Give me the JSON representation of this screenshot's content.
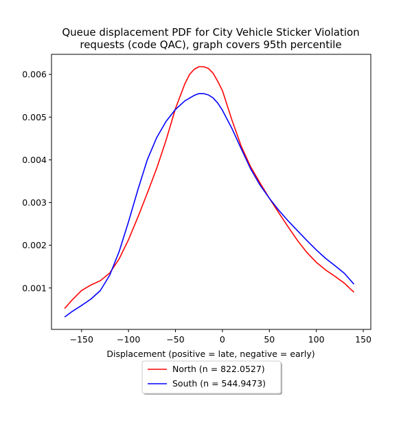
{
  "chart_data": {
    "type": "line",
    "title": "Queue displacement PDF for City Vehicle Sticker Violation requests (code QAC), graph covers 95th percentile",
    "title_lines": [
      "Queue displacement PDF for City Vehicle Sticker Violation",
      "requests (code QAC), graph covers 95th percentile"
    ],
    "xlabel": "Displacement (positive = late, negative = early)",
    "ylabel": "",
    "xlim": [
      -182,
      158
    ],
    "ylim": [
      3e-05,
      0.00647
    ],
    "xticks": [
      -150,
      -100,
      -50,
      0,
      50,
      100,
      150
    ],
    "xtick_labels": [
      "−150",
      "−100",
      "−50",
      "0",
      "50",
      "100",
      "150"
    ],
    "yticks": [
      0.001,
      0.002,
      0.003,
      0.004,
      0.005,
      0.006
    ],
    "ytick_labels": [
      "0.001",
      "0.002",
      "0.003",
      "0.004",
      "0.005",
      "0.006"
    ],
    "legend_position": "below axes, centered",
    "series": [
      {
        "name": "North (n = 822.0527)",
        "color": "#ff0000",
        "x": [
          -168,
          -160,
          -150,
          -140,
          -130,
          -120,
          -110,
          -100,
          -90,
          -80,
          -70,
          -60,
          -50,
          -40,
          -35,
          -30,
          -25,
          -20,
          -15,
          -10,
          -5,
          0,
          10,
          20,
          30,
          40,
          50,
          60,
          70,
          80,
          90,
          100,
          110,
          120,
          130,
          140
        ],
        "y": [
          0.00052,
          0.00072,
          0.00094,
          0.00107,
          0.00117,
          0.00135,
          0.00168,
          0.00213,
          0.00266,
          0.00322,
          0.0038,
          0.00446,
          0.0052,
          0.00578,
          0.006,
          0.00612,
          0.00618,
          0.00618,
          0.00614,
          0.00603,
          0.00584,
          0.00562,
          0.00494,
          0.00432,
          0.00384,
          0.00346,
          0.0031,
          0.00276,
          0.00243,
          0.00211,
          0.00183,
          0.0016,
          0.00142,
          0.00127,
          0.00111,
          0.0009
        ]
      },
      {
        "name": "South (n = 544.9473)",
        "color": "#0000ff",
        "x": [
          -168,
          -160,
          -150,
          -140,
          -130,
          -120,
          -110,
          -100,
          -90,
          -80,
          -70,
          -60,
          -50,
          -40,
          -30,
          -25,
          -20,
          -15,
          -10,
          -5,
          0,
          10,
          20,
          30,
          40,
          50,
          60,
          70,
          80,
          90,
          100,
          110,
          120,
          130,
          140
        ],
        "y": [
          0.00032,
          0.00045,
          0.00059,
          0.00074,
          0.00094,
          0.0013,
          0.00185,
          0.00255,
          0.0033,
          0.004,
          0.00452,
          0.0049,
          0.00518,
          0.00538,
          0.00551,
          0.00555,
          0.00555,
          0.00552,
          0.00545,
          0.00533,
          0.00516,
          0.00474,
          0.00426,
          0.00379,
          0.00341,
          0.0031,
          0.00282,
          0.00257,
          0.00234,
          0.00211,
          0.00189,
          0.00169,
          0.00152,
          0.00134,
          0.00109
        ]
      }
    ]
  }
}
